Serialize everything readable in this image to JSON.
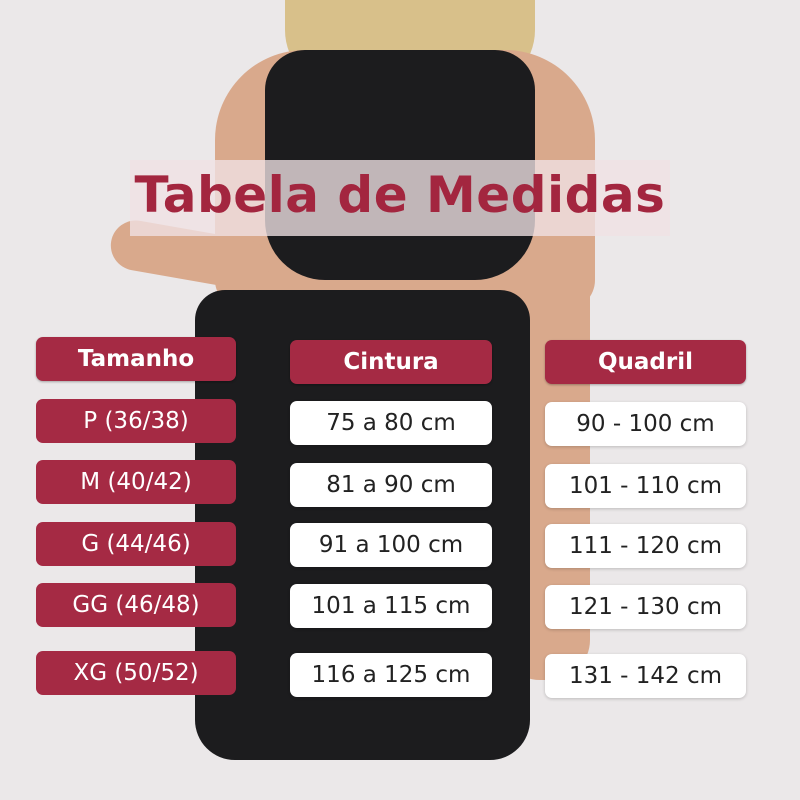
{
  "title": "Tabela de Medidas",
  "colors": {
    "accent": "#a52a44",
    "background": "#ebe8e9",
    "title": "#a3263f"
  },
  "headers": [
    "Tamanho",
    "Cintura",
    "Quadril"
  ],
  "rows": [
    {
      "size": "P (36/38)",
      "cintura": "75 a 80 cm",
      "quadril": "90 - 100 cm"
    },
    {
      "size": "M (40/42)",
      "cintura": "81 a 90 cm",
      "quadril": "101 - 110 cm"
    },
    {
      "size": "G (44/46)",
      "cintura": "91 a 100 cm",
      "quadril": "111 - 120 cm"
    },
    {
      "size": "GG (46/48)",
      "cintura": "101 a 115 cm",
      "quadril": "121 - 130 cm"
    },
    {
      "size": "XG (50/52)",
      "cintura": "116 a 125 cm",
      "quadril": "131 - 142 cm"
    }
  ]
}
